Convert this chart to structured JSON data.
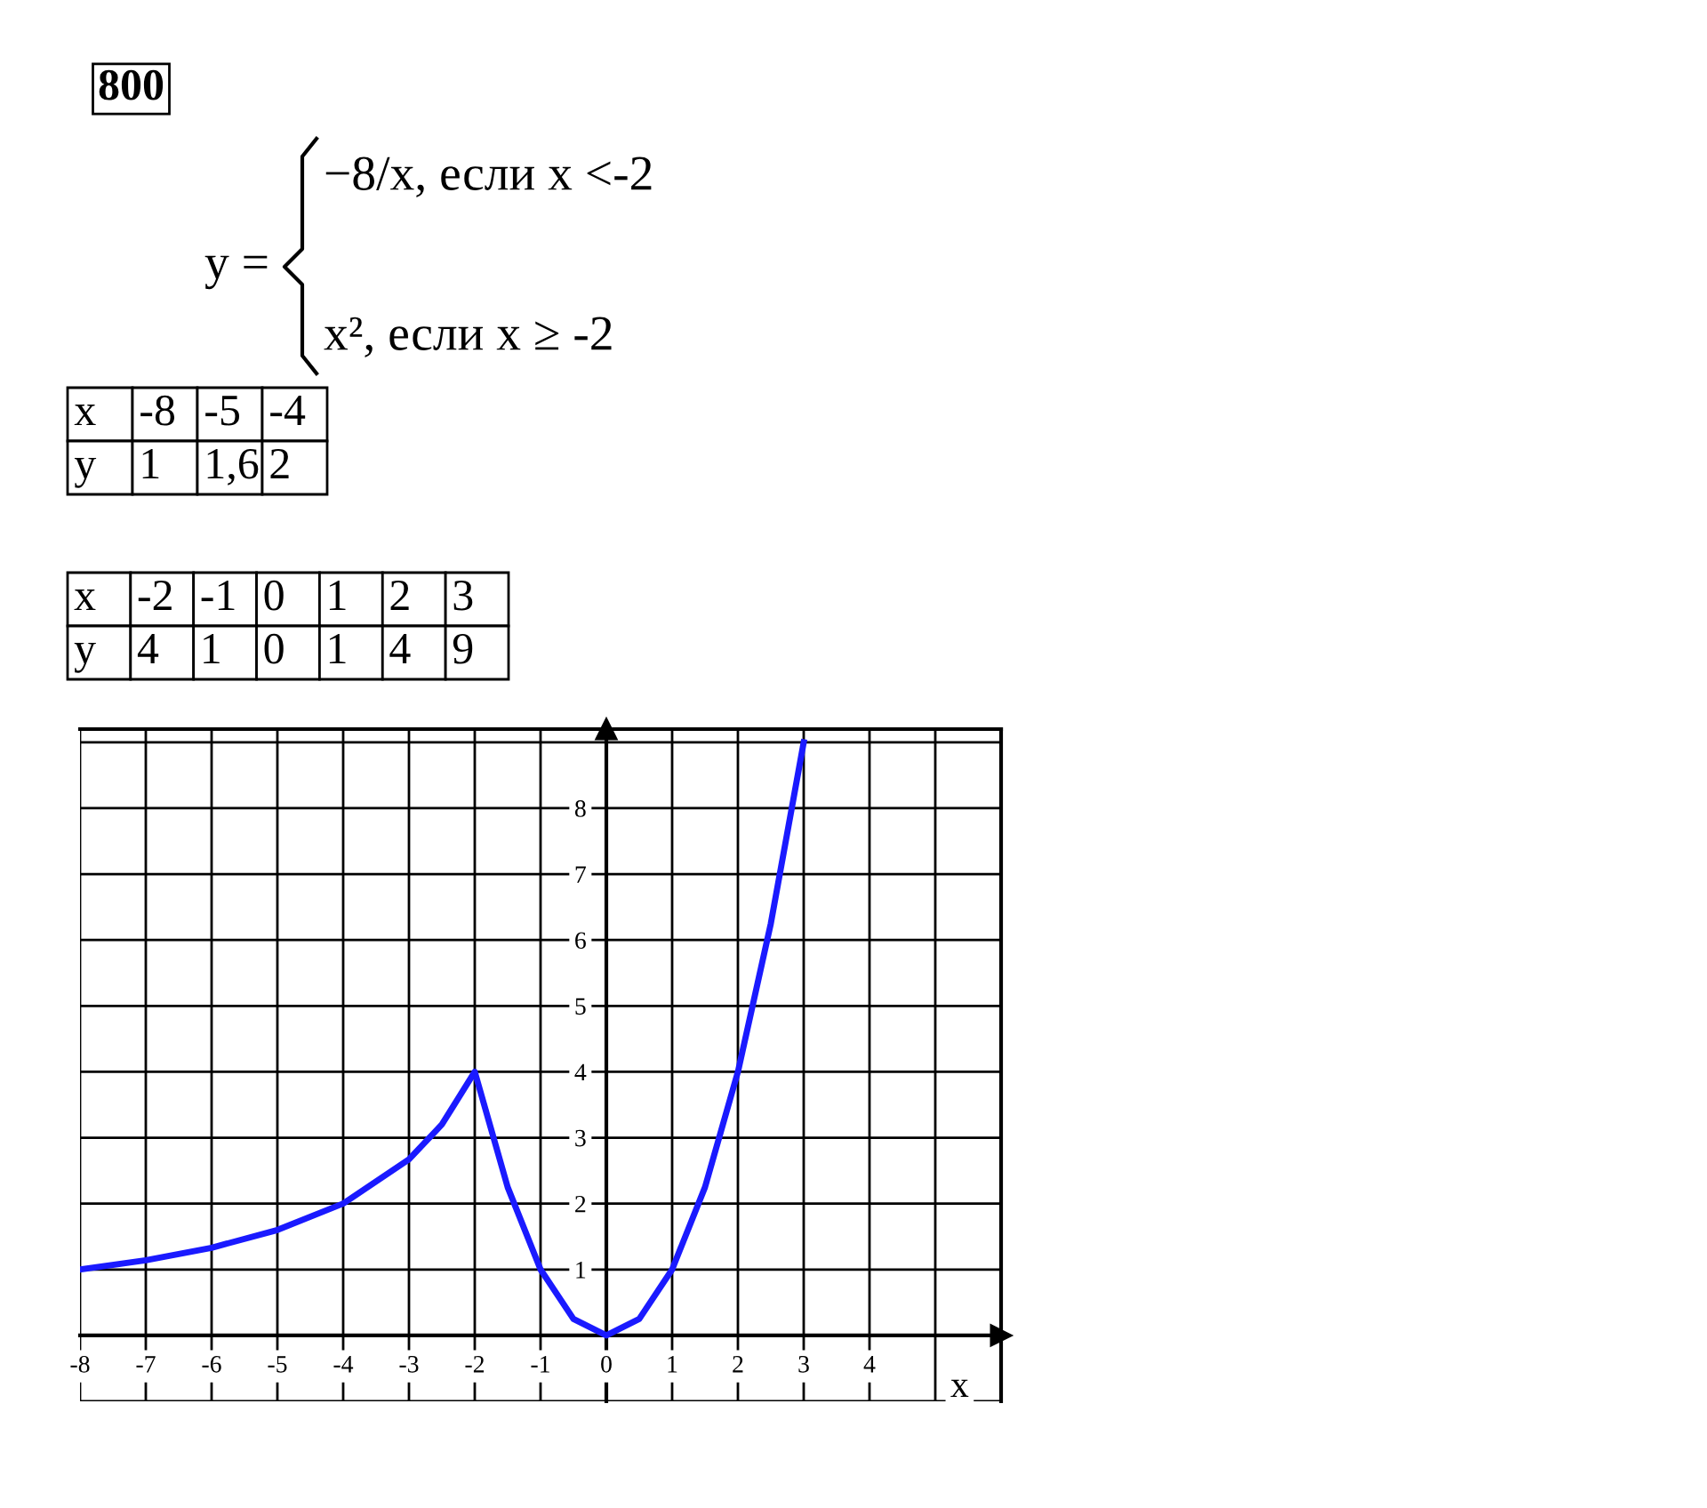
{
  "chart_data": {
    "type": "line",
    "annotations": [
      "800",
      "y =",
      "−8/x, если x <-2",
      "x², если x ≥ -2",
      "x -8 -5 -4",
      "y 1 1,6 2",
      "x -2 -1 0 1 2 3",
      "y 4 1 0 1 4 9"
    ],
    "xlabel": "x",
    "x": [
      -8,
      -7,
      -6,
      -5,
      -4,
      -3,
      -2.5,
      -2,
      -1.5,
      -1,
      -0.5,
      0,
      0.5,
      1,
      1.5,
      2,
      2.5,
      3
    ],
    "series": [
      {
        "color": "#1a1aff",
        "values": [
          1,
          1.14,
          1.33,
          1.6,
          2,
          2.67,
          3.2,
          4,
          2.25,
          1,
          0.25,
          0,
          0.25,
          1,
          2.25,
          4,
          6.25,
          9
        ]
      }
    ],
    "xlim": [
      -8,
      6
    ],
    "ylim": [
      -1,
      9.2
    ],
    "xticks": [
      -8,
      -7,
      -6,
      -5,
      -4,
      -3,
      -2,
      -1,
      0,
      1,
      2,
      3,
      4,
      {
        "value": 5,
        "label": null
      },
      {
        "value": 6,
        "label": null
      }
    ],
    "yticks": [
      {
        "value": -1,
        "label": null
      },
      {
        "value": 0,
        "label": null
      },
      1,
      2,
      3,
      4,
      5,
      6,
      7,
      8,
      {
        "value": 9,
        "label": null
      }
    ],
    "grid": true,
    "legend": false,
    "marker": "none",
    "line_style": "solid"
  }
}
